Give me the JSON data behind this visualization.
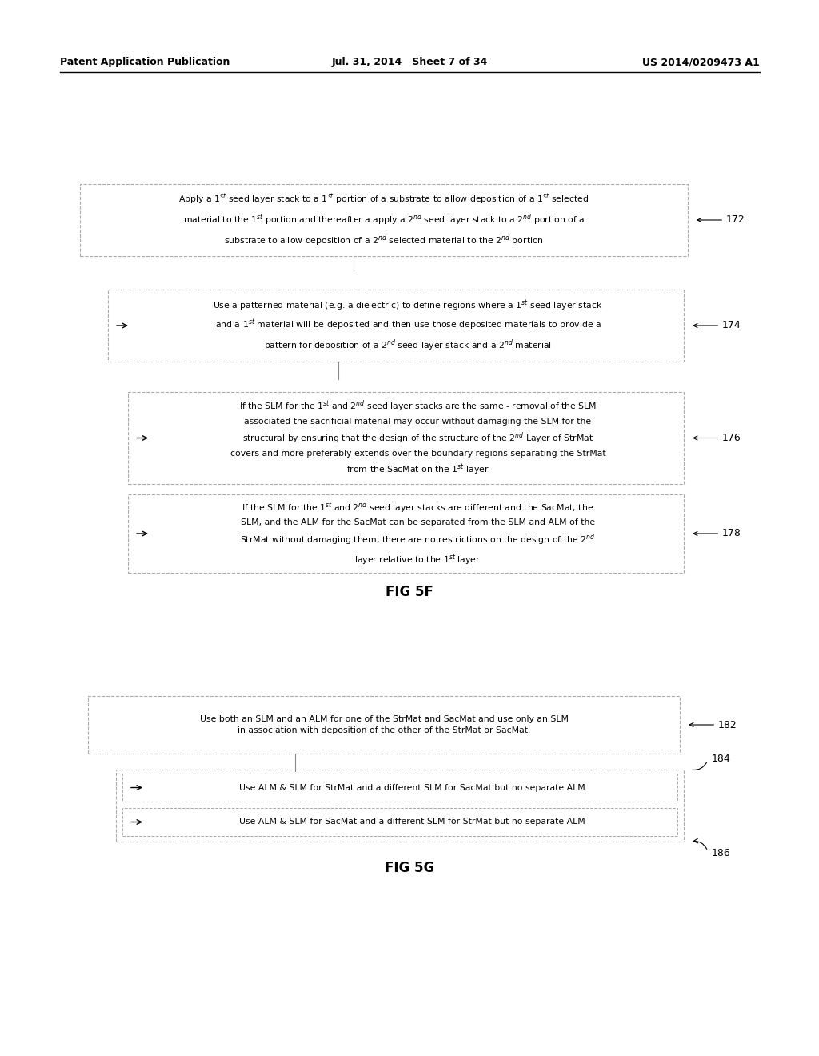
{
  "bg_color": "#ffffff",
  "header_left": "Patent Application Publication",
  "header_center": "Jul. 31, 2014   Sheet 7 of 34",
  "header_right": "US 2014/0209473 A1",
  "fig5f_label": "FIG 5F",
  "fig5g_label": "FIG 5G"
}
